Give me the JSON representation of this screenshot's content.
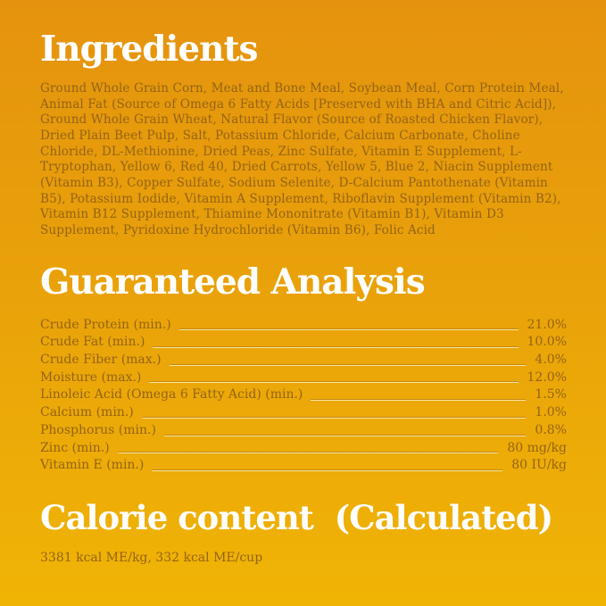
{
  "page": {
    "background_top_color": "#E5930E",
    "background_bottom_color": "#F0B405",
    "heading_color": "#FFFFFF",
    "body_text_color": "#946413"
  },
  "ingredients": {
    "title": "Ingredients",
    "body": "Ground Whole Grain Corn, Meat and Bone Meal, Soybean Meal, Corn Protein Meal, Animal Fat (Source of Omega 6 Fatty Acids [Preserved with BHA and Citric Acid]), Ground Whole Grain Wheat, Natural Flavor (Source of Roasted Chicken Flavor), Dried Plain Beet Pulp, Salt, Potassium Chloride, Calcium Carbonate, Choline Chloride, DL-Methionine, Dried Peas, Zinc Sulfate, Vitamin E Supplement, L-Tryptophan, Yellow 6, Red 40, Dried Carrots, Yellow 5, Blue 2, Niacin Supplement (Vitamin B3), Copper Sulfate, Sodium Selenite, D-Calcium Pantothenate (Vitamin B5), Potassium Iodide, Vitamin A Supplement, Riboflavin Supplement (Vitamin B2), Vitamin B12 Supplement, Thiamine Mononitrate (Vitamin B1), Vitamin D3 Supplement, Pyridoxine Hydrochloride (Vitamin B6), Folic Acid"
  },
  "guaranteed_analysis": {
    "title": "Guaranteed Analysis",
    "rows": [
      {
        "label": "Crude Protein (min.)",
        "value": "21.0%"
      },
      {
        "label": "Crude Fat (min.)",
        "value": "10.0%"
      },
      {
        "label": "Crude Fiber (max.)",
        "value": "4.0%"
      },
      {
        "label": "Moisture (max.)",
        "value": "12.0%"
      },
      {
        "label": "Linoleic Acid (Omega 6 Fatty Acid) (min.)",
        "value": "1.5%"
      },
      {
        "label": "Calcium (min.)",
        "value": "1.0%"
      },
      {
        "label": "Phosphorus (min.)",
        "value": "0.8%"
      },
      {
        "label": "Zinc (min.)",
        "value": "80 mg/kg"
      },
      {
        "label": "Vitamin E (min.)",
        "value": "80 IU/kg"
      }
    ]
  },
  "calorie_content": {
    "title": "Calorie content  (Calculated)",
    "body": "3381 kcal ME/kg, 332 kcal ME/cup"
  }
}
